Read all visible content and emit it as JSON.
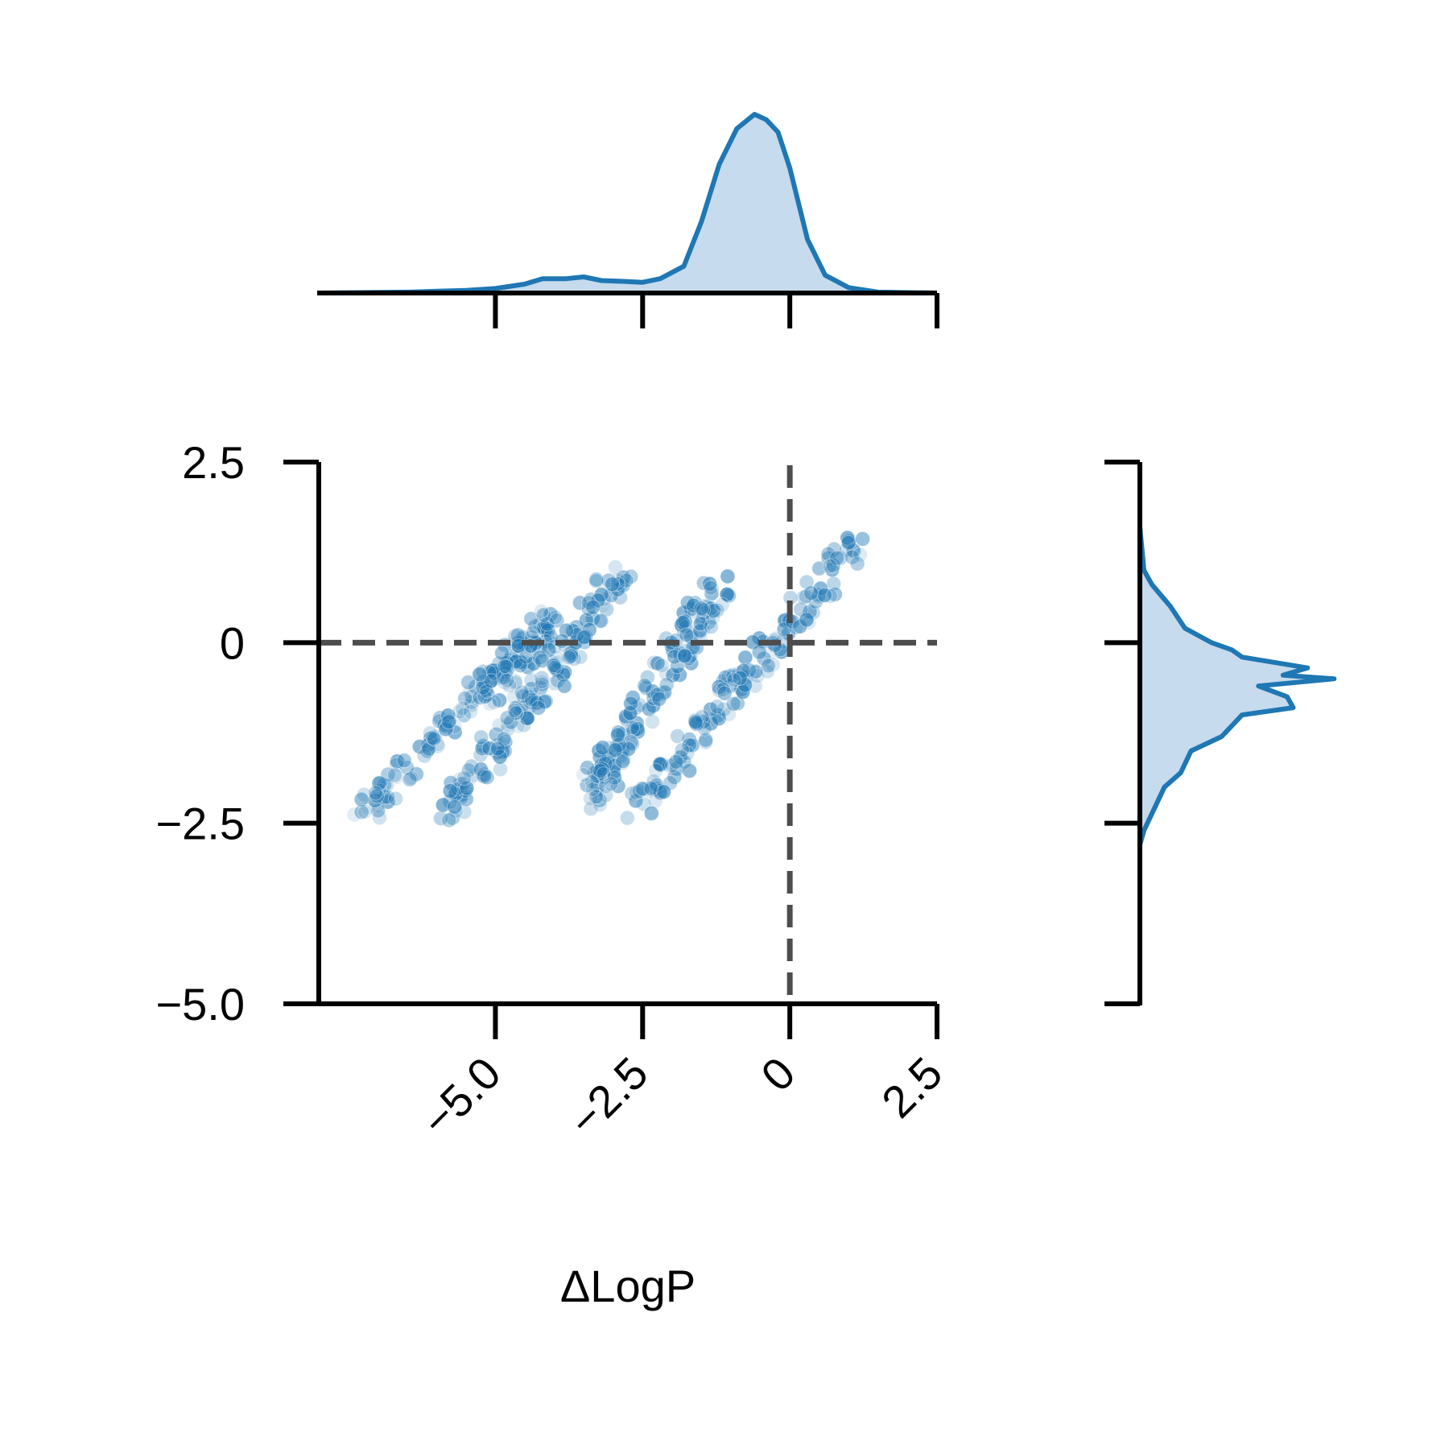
{
  "chart_data": {
    "type": "scatter",
    "subtype": "joint-plot with marginal KDE",
    "title": "",
    "xlabel": "ΔLogP",
    "ylabel": "",
    "xlim": [
      -8.0,
      2.5
    ],
    "ylim": [
      -5.0,
      2.5
    ],
    "x_ticks": [
      -5.0,
      -2.5,
      0,
      2.5
    ],
    "x_tick_labels": [
      "−5.0",
      "−2.5",
      "0",
      "2.5"
    ],
    "y_ticks": [
      -5.0,
      -2.5,
      0,
      2.5
    ],
    "y_tick_labels": [
      "−5.0",
      "−2.5",
      "0",
      "2.5"
    ],
    "x_tick_rotation": 45,
    "grid": false,
    "legend": "none",
    "reference_lines": [
      {
        "orientation": "vertical",
        "value": 0,
        "style": "dashed",
        "color": "#4d4d4d"
      },
      {
        "orientation": "horizontal",
        "value": 0,
        "style": "dashed",
        "color": "#4d4d4d"
      }
    ],
    "colors": {
      "points": "#1f77b4",
      "kde_line": "#1f77b4",
      "kde_fill": "#c6dbed",
      "ref_lines": "#4d4d4d",
      "axes": "#000000"
    },
    "series": [
      {
        "description": "scatter point bands (diagonal streaks), slope ~0.8",
        "bands": [
          {
            "x_start": -7.2,
            "y_start": -2.35,
            "x_end": -4.0,
            "y_end": 0.35
          },
          {
            "x_start": -5.8,
            "y_start": -2.3,
            "x_end": -2.8,
            "y_end": 0.95
          },
          {
            "x_start": -3.5,
            "y_start": -2.3,
            "x_end": -1.2,
            "y_end": 0.85
          },
          {
            "x_start": -2.6,
            "y_start": -2.3,
            "x_end": 1.2,
            "y_end": 1.45
          }
        ]
      }
    ],
    "marginal_x_kde": {
      "x": [
        -8.0,
        -6.5,
        -6.0,
        -5.5,
        -5.0,
        -4.5,
        -4.2,
        -3.8,
        -3.5,
        -3.2,
        -2.8,
        -2.5,
        -2.2,
        -1.8,
        -1.5,
        -1.2,
        -0.9,
        -0.6,
        -0.4,
        -0.2,
        0.0,
        0.3,
        0.6,
        1.0,
        1.5,
        2.5
      ],
      "density": [
        0.0,
        0.005,
        0.01,
        0.015,
        0.025,
        0.05,
        0.08,
        0.08,
        0.09,
        0.07,
        0.065,
        0.06,
        0.08,
        0.15,
        0.4,
        0.72,
        0.92,
        1.0,
        0.97,
        0.9,
        0.7,
        0.3,
        0.1,
        0.03,
        0.005,
        0.0
      ]
    },
    "marginal_y_kde": {
      "y": [
        -2.8,
        -2.6,
        -2.3,
        -2.0,
        -1.8,
        -1.5,
        -1.3,
        -1.0,
        -0.9,
        -0.75,
        -0.6,
        -0.5,
        -0.45,
        -0.35,
        -0.2,
        -0.1,
        0.0,
        0.2,
        0.5,
        0.8,
        1.0,
        1.6
      ],
      "density": [
        0.0,
        0.02,
        0.07,
        0.12,
        0.2,
        0.25,
        0.4,
        0.5,
        0.75,
        0.72,
        0.58,
        0.95,
        0.7,
        0.82,
        0.5,
        0.45,
        0.35,
        0.22,
        0.15,
        0.06,
        0.02,
        0.0
      ]
    }
  }
}
